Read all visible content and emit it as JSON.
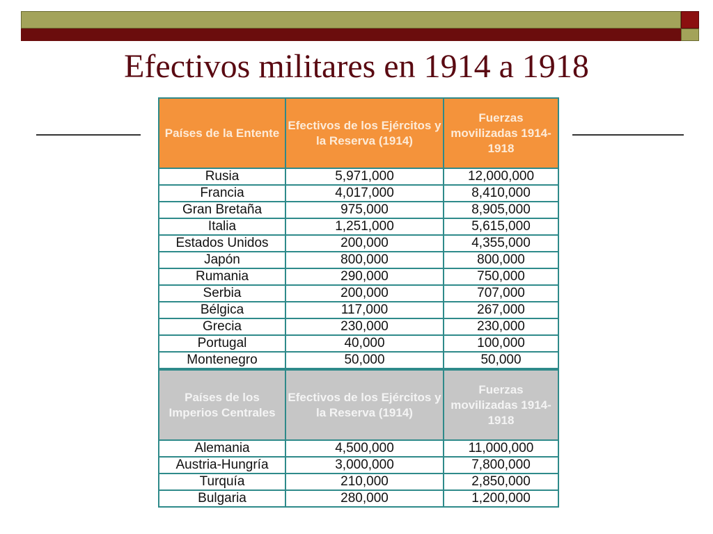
{
  "slide": {
    "title": "Efectivos militares en 1914 a 1918"
  },
  "table": {
    "entente_header": {
      "col1": "Países de la Entente",
      "col2": "Efectivos de los Ejércitos y la Reserva (1914)",
      "col3": "Fuerzas movilizadas 1914-1918"
    },
    "entente_rows": [
      {
        "country": "Rusia",
        "reserve": "5,971,000",
        "mobilized": "12,000,000"
      },
      {
        "country": "Francia",
        "reserve": "4,017,000",
        "mobilized": "8,410,000"
      },
      {
        "country": "Gran Bretaña",
        "reserve": "975,000",
        "mobilized": "8,905,000"
      },
      {
        "country": "Italia",
        "reserve": "1,251,000",
        "mobilized": "5,615,000"
      },
      {
        "country": "Estados Unidos",
        "reserve": "200,000",
        "mobilized": "4,355,000"
      },
      {
        "country": "Japón",
        "reserve": "800,000",
        "mobilized": "800,000"
      },
      {
        "country": "Rumania",
        "reserve": "290,000",
        "mobilized": "750,000"
      },
      {
        "country": "Serbia",
        "reserve": "200,000",
        "mobilized": "707,000"
      },
      {
        "country": "Bélgica",
        "reserve": "117,000",
        "mobilized": "267,000"
      },
      {
        "country": "Grecia",
        "reserve": "230,000",
        "mobilized": "230,000"
      },
      {
        "country": "Portugal",
        "reserve": "40,000",
        "mobilized": "100,000"
      },
      {
        "country": "Montenegro",
        "reserve": "50,000",
        "mobilized": "50,000"
      }
    ],
    "central_header": {
      "col1": "Países de los Imperios Centrales",
      "col2": "Efectivos de los Ejércitos y la Reserva (1914)",
      "col3": "Fuerzas movilizadas 1914-1918"
    },
    "central_rows": [
      {
        "country": "Alemania",
        "reserve": "4,500,000",
        "mobilized": "11,000,000"
      },
      {
        "country": "Austria-Hungría",
        "reserve": "3,000,000",
        "mobilized": "7,800,000"
      },
      {
        "country": "Turquía",
        "reserve": "210,000",
        "mobilized": "2,850,000"
      },
      {
        "country": "Bulgaria",
        "reserve": "280,000",
        "mobilized": "1,200,000"
      }
    ]
  }
}
